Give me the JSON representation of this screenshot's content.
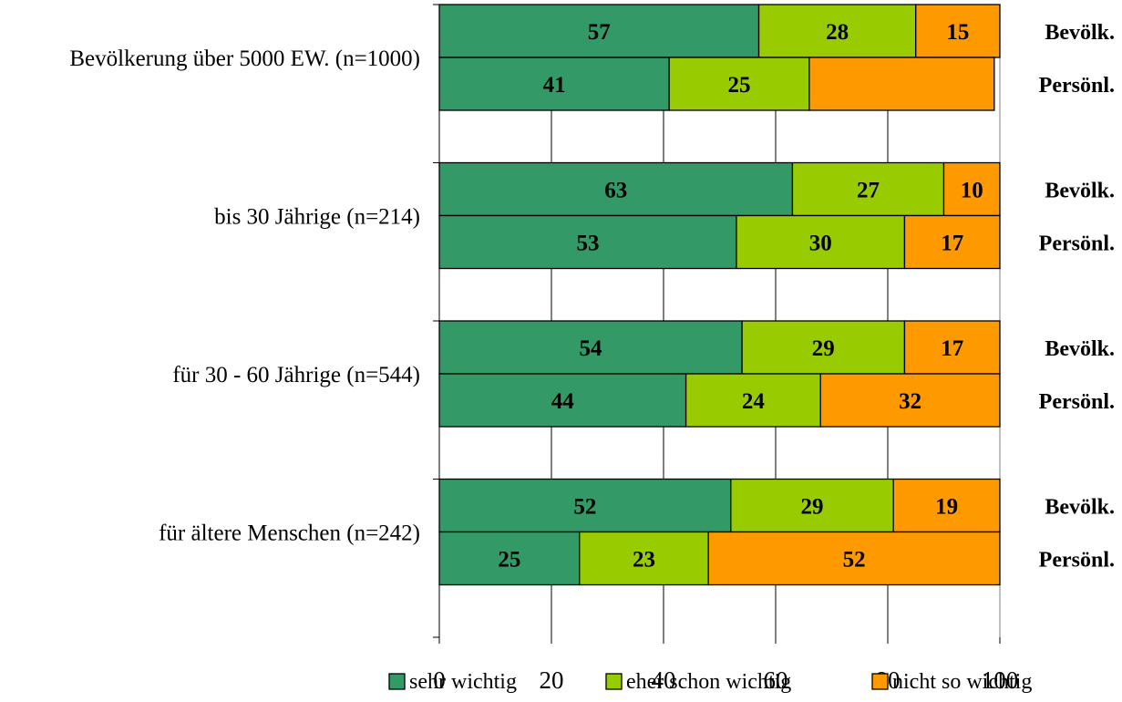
{
  "chart_data": {
    "type": "bar",
    "orientation": "horizontal",
    "stacked": true,
    "groups": [
      {
        "label": "Bevölkerung über 5000 EW. (n=1000)",
        "rows": [
          {
            "label": "Bevölk.",
            "values": [
              57,
              28,
              15
            ],
            "labels": [
              "57",
              "28",
              "15"
            ]
          },
          {
            "label": "Persönl.",
            "values": [
              41,
              25,
              33
            ],
            "labels": [
              "41",
              "25",
              ""
            ]
          }
        ]
      },
      {
        "label": "bis 30 Jährige (n=214)",
        "rows": [
          {
            "label": "Bevölk.",
            "values": [
              63,
              27,
              10
            ],
            "labels": [
              "63",
              "27",
              "10"
            ]
          },
          {
            "label": "Persönl.",
            "values": [
              53,
              30,
              17
            ],
            "labels": [
              "53",
              "30",
              "17"
            ]
          }
        ]
      },
      {
        "label": "für 30 - 60 Jährige (n=544)",
        "rows": [
          {
            "label": "Bevölk.",
            "values": [
              54,
              29,
              17
            ],
            "labels": [
              "54",
              "29",
              "17"
            ]
          },
          {
            "label": "Persönl.",
            "values": [
              44,
              24,
              32
            ],
            "labels": [
              "44",
              "24",
              "32"
            ]
          }
        ]
      },
      {
        "label": "für ältere Menschen (n=242)",
        "rows": [
          {
            "label": "Bevölk.",
            "values": [
              52,
              29,
              19
            ],
            "labels": [
              "52",
              "29",
              "19"
            ]
          },
          {
            "label": "Persönl.",
            "values": [
              25,
              23,
              52
            ],
            "labels": [
              "25",
              "23",
              "52"
            ]
          }
        ]
      }
    ],
    "series": [
      {
        "name": "sehr wichtig",
        "color": "#339966"
      },
      {
        "name": "eher schon wichtig",
        "color": "#99CC00"
      },
      {
        "name": "nicht so wichtig",
        "color": "#FF9900"
      }
    ],
    "x_ticks": [
      "0",
      "20",
      "40",
      "60",
      "80",
      "100"
    ],
    "xlim": [
      0,
      100
    ],
    "grid": true,
    "legend_position": "bottom-right"
  }
}
